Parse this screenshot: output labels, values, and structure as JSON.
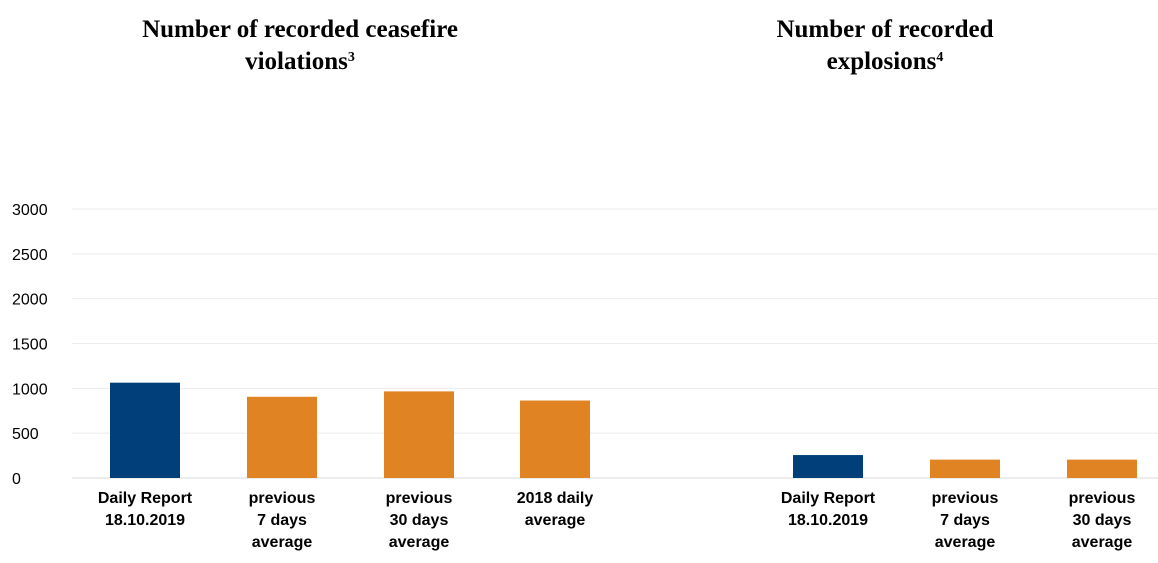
{
  "titles": {
    "left": {
      "text": "Number of recorded ceasefire violations",
      "footnote": "3"
    },
    "right": {
      "text": "Number of recorded explosions",
      "footnote": "4"
    }
  },
  "chart_data": {
    "type": "bar",
    "ylim": [
      0,
      3000
    ],
    "yticks": [
      0,
      500,
      1000,
      1500,
      2000,
      2500,
      3000
    ],
    "grid": true,
    "colors": {
      "daily": "#003f7a",
      "average": "#e08423"
    },
    "groups": [
      {
        "title": "Number of recorded ceasefire violations",
        "categories": [
          [
            "Daily Report",
            "18.10.2019"
          ],
          [
            "previous",
            "7 days",
            "average"
          ],
          [
            "previous",
            "30 days",
            "average"
          ],
          [
            "2018 daily",
            "average"
          ]
        ],
        "values": [
          1063,
          906,
          966,
          864
        ],
        "kinds": [
          "daily",
          "average",
          "average",
          "average"
        ]
      },
      {
        "title": "Number of recorded explosions",
        "categories": [
          [
            "Daily Report",
            "18.10.2019"
          ],
          [
            "previous",
            "7 days",
            "average"
          ],
          [
            "previous",
            "30 days",
            "average"
          ]
        ],
        "values": [
          256,
          205,
          205
        ],
        "kinds": [
          "daily",
          "average",
          "average"
        ]
      }
    ]
  }
}
